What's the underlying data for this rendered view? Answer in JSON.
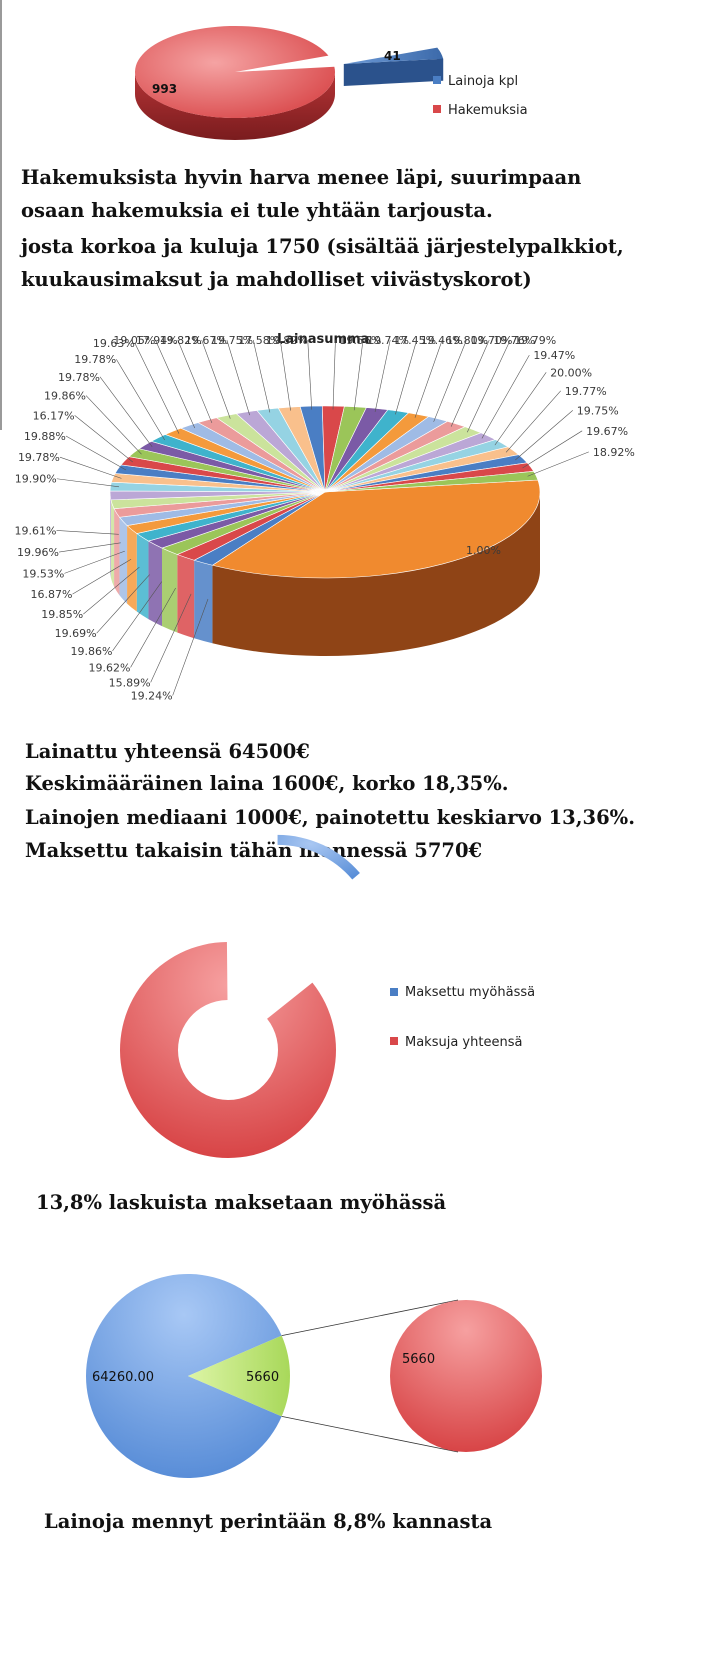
{
  "chart_data": [
    {
      "type": "pie",
      "categories": [
        "Lainoja kpl",
        "Hakemuksia"
      ],
      "values": [
        41,
        993
      ],
      "data_labels": [
        "41",
        "993"
      ],
      "legend": [
        "Lainoja kpl",
        "Hakemuksia"
      ],
      "legend_position": "right",
      "colors": [
        "#4a7ec4",
        "#d9484a"
      ]
    },
    {
      "type": "pie",
      "title": "Lainasumma",
      "small_slice_labels": [
        "19.24%",
        "15.89%",
        "19.62%",
        "19.86%",
        "19.69%",
        "19.85%",
        "16.87%",
        "19.53%",
        "19.96%",
        "19.61%",
        "19.90%",
        "19.78%",
        "19.88%",
        "16.17%",
        "19.86%",
        "19.78%",
        "19.78%",
        "19.63%",
        "19.05%",
        "17.94%",
        "19.82%",
        "19.67%",
        "19.75%",
        "17.58%",
        "19.82%",
        "19.56%",
        "19.74%",
        "17.45%",
        "19.46%",
        "19.80%",
        "19.70%",
        "19.76%",
        "19.79%",
        "19.47%",
        "20.00%",
        "19.77%",
        "19.75%",
        "19.67%",
        "18.92%"
      ],
      "large_slice_label": "1.00%",
      "large_slice_fraction": 0.36
    },
    {
      "type": "pie",
      "variant": "exploded-doughnut",
      "categories": [
        "Maksettu myöhässä",
        "Maksuja yhteensä"
      ],
      "values": [
        13.8,
        86.2
      ],
      "legend": [
        "Maksettu myöhässä",
        "Maksuja yhteensä"
      ],
      "legend_position": "right",
      "colors": [
        "#4a7ec4",
        "#d9484a"
      ]
    },
    {
      "type": "pie",
      "variant": "pie-of-pie",
      "categories": [
        "",
        ""
      ],
      "values": [
        64260.0,
        5660
      ],
      "data_labels": [
        "64260.00",
        "5660"
      ],
      "secondary_label": "5660",
      "colors": [
        "#4a7ec4",
        "#b9e66a",
        "#d9484a"
      ]
    }
  ],
  "captions": {
    "c1_line1": "Hakemuksista hyvin harva menee läpi, suurimpaan",
    "c1_line2": "osaan hakemuksia ei tule yhtään tarjousta.",
    "c1_line3": "josta korkoa ja kuluja 1750 (sisältää järjestelypalkkiot,",
    "c1_line4": "kuukausimaksut ja mahdolliset viivästyskorot)",
    "c2_line1": "Lainattu yhteensä 64500€",
    "c2_line2": "Keskimääräinen laina 1600€, korko 18,35%.",
    "c2_line3": "Lainojen mediaani 1000€, painotettu keskiarvo 13,36%.",
    "c2_line4": "Maksettu takaisin tähän mennessä 5770€",
    "c3": "13,8% laskuista maksetaan myöhässä",
    "c4": "Lainoja mennyt perintään 8,8% kannasta"
  }
}
